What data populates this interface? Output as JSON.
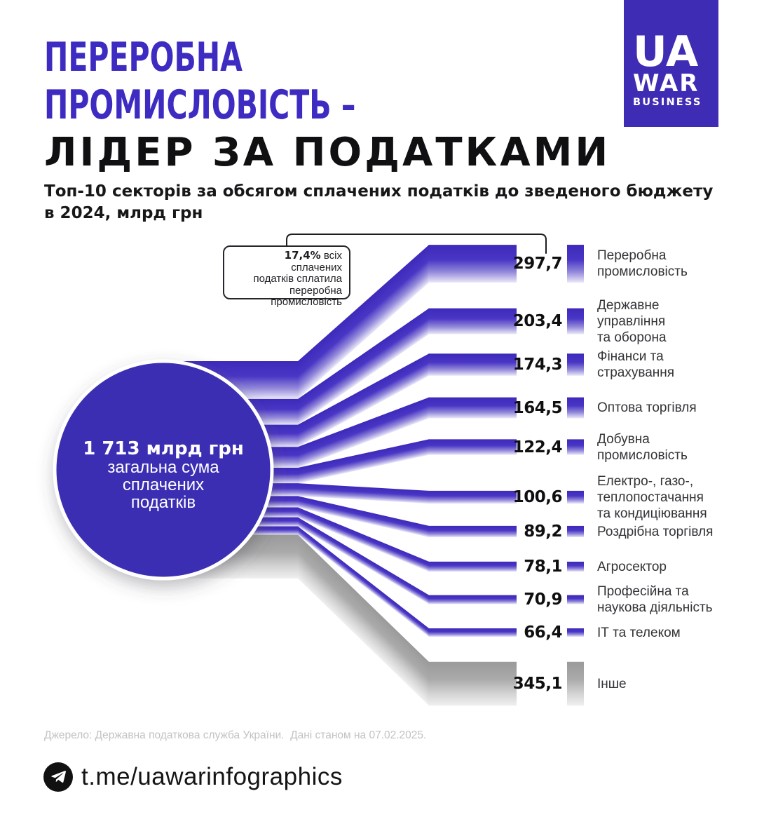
{
  "colors": {
    "accent": "#3E2CC2",
    "logo_bg": "#3F2CB4",
    "circle_fill": "#3A2EB2",
    "label": "#333338",
    "source": "#c2c2c2"
  },
  "logo": {
    "line1": "UA",
    "line2": "WAR",
    "line3": "BUSINESS"
  },
  "header": {
    "title_line1": "ПЕРЕРОБНА",
    "title_line2": "ПРОМИСЛОВІСТЬ –",
    "title_line3": "ЛІДЕР ЗА ПОДАТКАМИ",
    "subtitle_line1": "Топ-10 секторів за обсягом сплачених податків до зведеного бюджету",
    "subtitle_line2": "в 2024, млрд грн"
  },
  "annotation": {
    "highlight": "17,4%",
    "line1_rest": " всіх сплачених",
    "line2": "податків сплатила",
    "line3": "переробна",
    "line4": "промисловість"
  },
  "chart_data": {
    "type": "sankey",
    "title": "Топ-10 секторів за обсягом сплачених податків до зведеного бюджету в 2024, млрд грн",
    "unit": "млрд грн",
    "total": {
      "value": 1713,
      "display": "1 713",
      "unit": "млрд грн",
      "caption_lines": [
        "загальна сума",
        "сплачених",
        "податків"
      ]
    },
    "rows": [
      {
        "value": 297.7,
        "display": "297,7",
        "label_lines": [
          "Переробна",
          "промисловість"
        ],
        "other": false
      },
      {
        "value": 203.4,
        "display": "203,4",
        "label_lines": [
          "Державне",
          "управління",
          "та оборона"
        ],
        "other": false
      },
      {
        "value": 174.3,
        "display": "174,3",
        "label_lines": [
          "Фінанси та",
          "страхування"
        ],
        "other": false
      },
      {
        "value": 164.5,
        "display": "164,5",
        "label_lines": [
          "Оптова торгівля"
        ],
        "other": false
      },
      {
        "value": 122.4,
        "display": "122,4",
        "label_lines": [
          "Добувна",
          "промисловість"
        ],
        "other": false
      },
      {
        "value": 100.6,
        "display": "100,6",
        "label_lines": [
          "Електро-, газо-,",
          "теплопостачання",
          "та кондиціювання"
        ],
        "other": false
      },
      {
        "value": 89.2,
        "display": "89,2",
        "label_lines": [
          "Роздрібна торгівля"
        ],
        "other": false
      },
      {
        "value": 78.1,
        "display": "78,1",
        "label_lines": [
          "Агросектор"
        ],
        "other": false
      },
      {
        "value": 70.9,
        "display": "70,9",
        "label_lines": [
          "Професійна та",
          "наукова діяльність"
        ],
        "other": false
      },
      {
        "value": 66.4,
        "display": "66,4",
        "label_lines": [
          "ІТ та телеком"
        ],
        "other": false
      },
      {
        "value": 345.1,
        "display": "345,1",
        "label_lines": [
          "Інше"
        ],
        "other": true
      }
    ],
    "colors": {
      "flow_stops": [
        [
          "0%",
          "#3D2ABA"
        ],
        [
          "40%",
          "#4A36C5"
        ],
        [
          "72%",
          "#9389DA"
        ],
        [
          "100%",
          "#EAE8F9"
        ]
      ],
      "other_stops": [
        [
          "0%",
          "#9A9A9A"
        ],
        [
          "40%",
          "#AAAAAA"
        ],
        [
          "72%",
          "#D3D3D3"
        ],
        [
          "100%",
          "#F0F0F0"
        ]
      ]
    }
  },
  "source": "Джерело: Державна податкова служба України.  Дані станом на 07.02.2025.",
  "footer": {
    "handle": "t.me/uawarinfographics"
  }
}
